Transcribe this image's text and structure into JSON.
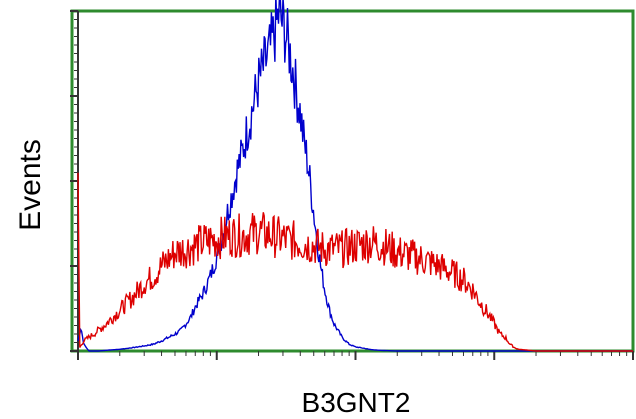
{
  "chart_data": {
    "type": "line",
    "title": "",
    "xlabel": "B3GNT2",
    "ylabel": "Events",
    "x_scale": "log",
    "xlim": [
      1,
      10000
    ],
    "ylim": [
      0,
      100
    ],
    "grid": false,
    "legend": "none",
    "frame_color": "#2e8b2e",
    "series": [
      {
        "color": "#0000cc",
        "x": [
          1,
          1.05,
          1.1,
          1.2,
          1.4,
          1.7,
          2.0,
          2.5,
          3.0,
          3.5,
          4.0,
          4.5,
          5.0,
          5.5,
          6.0,
          6.5,
          7.0,
          8.0,
          9.0,
          10,
          11,
          12,
          13,
          14,
          15,
          16,
          17,
          18,
          19,
          20,
          22,
          24,
          26,
          28,
          30,
          32,
          35,
          38,
          40,
          42,
          45,
          48,
          52,
          56,
          60,
          65,
          70,
          80,
          90,
          100,
          115,
          130,
          150,
          200,
          300,
          500,
          1000,
          10000
        ],
        "y": [
          3,
          7,
          2,
          0,
          0,
          0.3,
          0.5,
          1,
          1.5,
          2,
          3,
          4,
          5,
          6,
          8,
          10,
          13,
          17,
          22,
          28,
          34,
          41,
          47,
          53,
          57,
          62,
          67,
          71,
          75,
          79,
          84,
          88,
          93,
          99,
          96,
          92,
          84,
          75,
          70,
          63,
          56,
          47,
          35,
          25,
          18,
          12,
          8,
          4,
          2,
          1.2,
          0.8,
          0.4,
          0.2,
          0,
          0,
          0,
          0,
          0
        ]
      },
      {
        "color": "#dd0000",
        "x": [
          1,
          1.01,
          1.02,
          1.03,
          1.1,
          1.3,
          1.6,
          2.0,
          2.5,
          3.0,
          3.5,
          4.0,
          5.0,
          6.0,
          7.0,
          8.0,
          10,
          12,
          15,
          20,
          25,
          30,
          40,
          50,
          60,
          70,
          80,
          100,
          130,
          160,
          200,
          250,
          300,
          400,
          500,
          600,
          700,
          800,
          900,
          1000,
          1100,
          1200,
          1300,
          1400,
          1500,
          1700,
          2000,
          2500,
          10000
        ],
        "y": [
          48,
          48,
          2,
          1,
          3,
          5,
          8,
          12,
          16,
          20,
          22,
          25,
          29,
          30,
          31,
          32,
          33,
          34,
          34,
          35,
          34,
          33,
          32,
          31,
          30,
          30,
          30,
          31,
          32,
          31,
          29,
          28,
          27,
          25,
          23,
          21,
          18,
          14,
          11,
          8,
          5,
          4,
          2,
          1,
          0.5,
          0.3,
          0,
          0,
          0
        ]
      }
    ]
  }
}
